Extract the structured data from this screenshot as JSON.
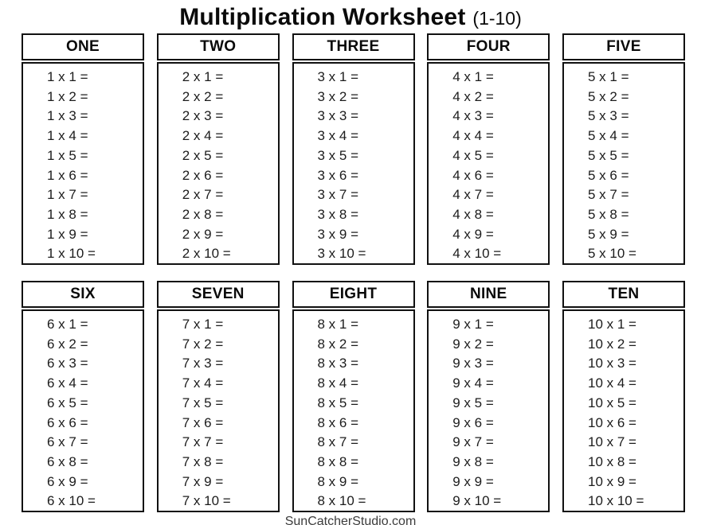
{
  "title": {
    "main": "Multiplication Worksheet",
    "suffix": "(1-10)"
  },
  "footer": "SunCatcherStudio.com",
  "tables": [
    {
      "header": "ONE",
      "problems": [
        "1 x 1 =",
        "1 x 2 =",
        "1 x 3 =",
        "1 x 4 =",
        "1 x 5 =",
        "1 x 6 =",
        "1 x 7 =",
        "1 x 8 =",
        "1 x 9 =",
        "1 x 10 ="
      ]
    },
    {
      "header": "TWO",
      "problems": [
        "2 x 1 =",
        "2 x 2 =",
        "2 x 3 =",
        "2 x 4 =",
        "2 x 5 =",
        "2 x 6 =",
        "2 x 7 =",
        "2 x 8 =",
        "2 x 9 =",
        "2 x 10 ="
      ]
    },
    {
      "header": "THREE",
      "problems": [
        "3 x 1 =",
        "3 x 2 =",
        "3 x 3 =",
        "3 x 4 =",
        "3 x 5 =",
        "3 x 6 =",
        "3 x 7 =",
        "3 x 8 =",
        "3 x 9 =",
        "3 x 10 ="
      ]
    },
    {
      "header": "FOUR",
      "problems": [
        "4 x 1 =",
        "4 x 2 =",
        "4 x 3 =",
        "4 x 4 =",
        "4 x 5 =",
        "4 x 6 =",
        "4 x 7 =",
        "4 x 8 =",
        "4 x 9 =",
        "4 x 10 ="
      ]
    },
    {
      "header": "FIVE",
      "problems": [
        "5 x 1 =",
        "5 x 2 =",
        "5 x 3 =",
        "5 x 4 =",
        "5 x 5 =",
        "5 x 6 =",
        "5 x 7 =",
        "5 x 8 =",
        "5 x 9 =",
        "5 x 10 ="
      ]
    },
    {
      "header": "SIX",
      "problems": [
        "6 x 1 =",
        "6 x 2 =",
        "6 x 3 =",
        "6 x 4 =",
        "6 x 5 =",
        "6 x 6 =",
        "6 x 7 =",
        "6 x 8 =",
        "6 x 9 =",
        "6 x 10 ="
      ]
    },
    {
      "header": "SEVEN",
      "problems": [
        "7 x 1 =",
        "7 x 2 =",
        "7 x 3 =",
        "7 x 4 =",
        "7 x 5 =",
        "7 x 6 =",
        "7 x 7 =",
        "7 x 8 =",
        "7 x 9 =",
        "7 x 10 ="
      ]
    },
    {
      "header": "EIGHT",
      "problems": [
        "8 x 1 =",
        "8 x 2 =",
        "8 x 3 =",
        "8 x 4 =",
        "8 x 5 =",
        "8 x 6 =",
        "8 x 7 =",
        "8 x 8 =",
        "8 x 9 =",
        "8 x 10 ="
      ]
    },
    {
      "header": "NINE",
      "problems": [
        "9 x 1 =",
        "9 x 2 =",
        "9 x 3 =",
        "9 x 4 =",
        "9 x 5 =",
        "9 x 6 =",
        "9 x 7 =",
        "9 x 8 =",
        "9 x 9 =",
        "9 x 10 ="
      ]
    },
    {
      "header": "TEN",
      "problems": [
        "10 x 1 =",
        "10 x 2 =",
        "10 x 3 =",
        "10 x 4 =",
        "10 x 5 =",
        "10 x 6 =",
        "10 x 7 =",
        "10 x 8 =",
        "10 x 9 =",
        "10 x 10 ="
      ]
    }
  ]
}
